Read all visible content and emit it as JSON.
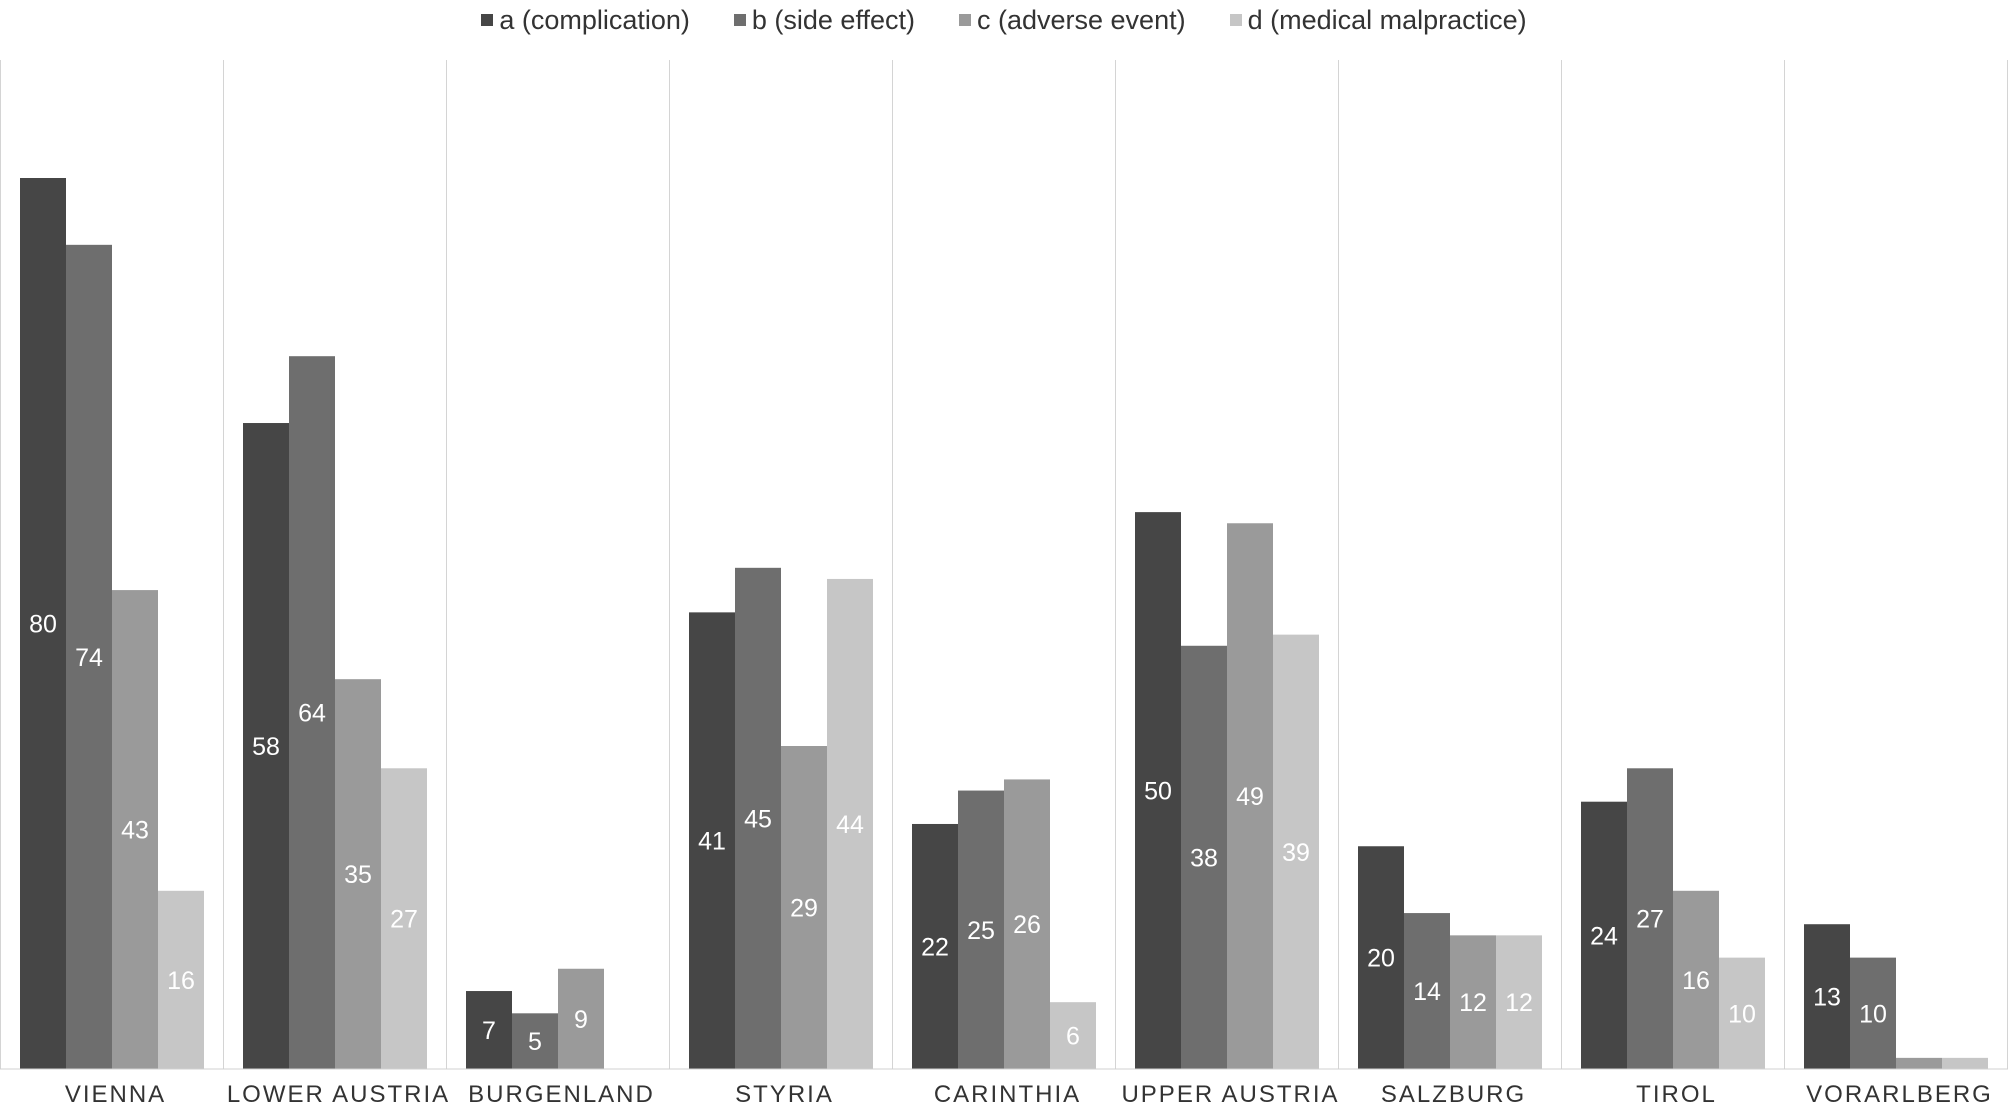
{
  "chart_data": {
    "type": "bar",
    "title": "",
    "xlabel": "",
    "ylabel": "",
    "ylim": [
      0,
      80
    ],
    "grid": false,
    "legend_position": "top-center",
    "categories": [
      "VIENNA",
      "LOWER AUSTRIA",
      "BURGENLAND",
      "STYRIA",
      "CARINTHIA",
      "UPPER AUSTRIA",
      "SALZBURG",
      "TIROL",
      "VORARLBERG"
    ],
    "series": [
      {
        "name": "a (complication)",
        "color": "#464646",
        "values": [
          80,
          58,
          7,
          41,
          22,
          50,
          20,
          24,
          13
        ],
        "labels": [
          "80",
          "58",
          "7",
          "41",
          "22",
          "50",
          "20",
          "24",
          "13"
        ]
      },
      {
        "name": "b (side effect)",
        "color": "#6e6e6e",
        "values": [
          74,
          64,
          5,
          45,
          25,
          38,
          14,
          27,
          10
        ],
        "labels": [
          "74",
          "64",
          "5",
          "45",
          "25",
          "38",
          "14",
          "27",
          "10"
        ]
      },
      {
        "name": "c (adverse event)",
        "color": "#9a9a9a",
        "values": [
          43,
          35,
          9,
          29,
          26,
          49,
          12,
          16,
          1
        ],
        "labels": [
          "43",
          "35",
          "9",
          "29",
          "26",
          "49",
          "12",
          "16",
          ""
        ]
      },
      {
        "name": "d (medical malpractice)",
        "color": "#c6c6c6",
        "values": [
          16,
          27,
          0,
          44,
          6,
          39,
          12,
          10,
          1
        ],
        "labels": [
          "16",
          "27",
          "",
          "44",
          "6",
          "39",
          "12",
          "10",
          ""
        ]
      }
    ]
  }
}
